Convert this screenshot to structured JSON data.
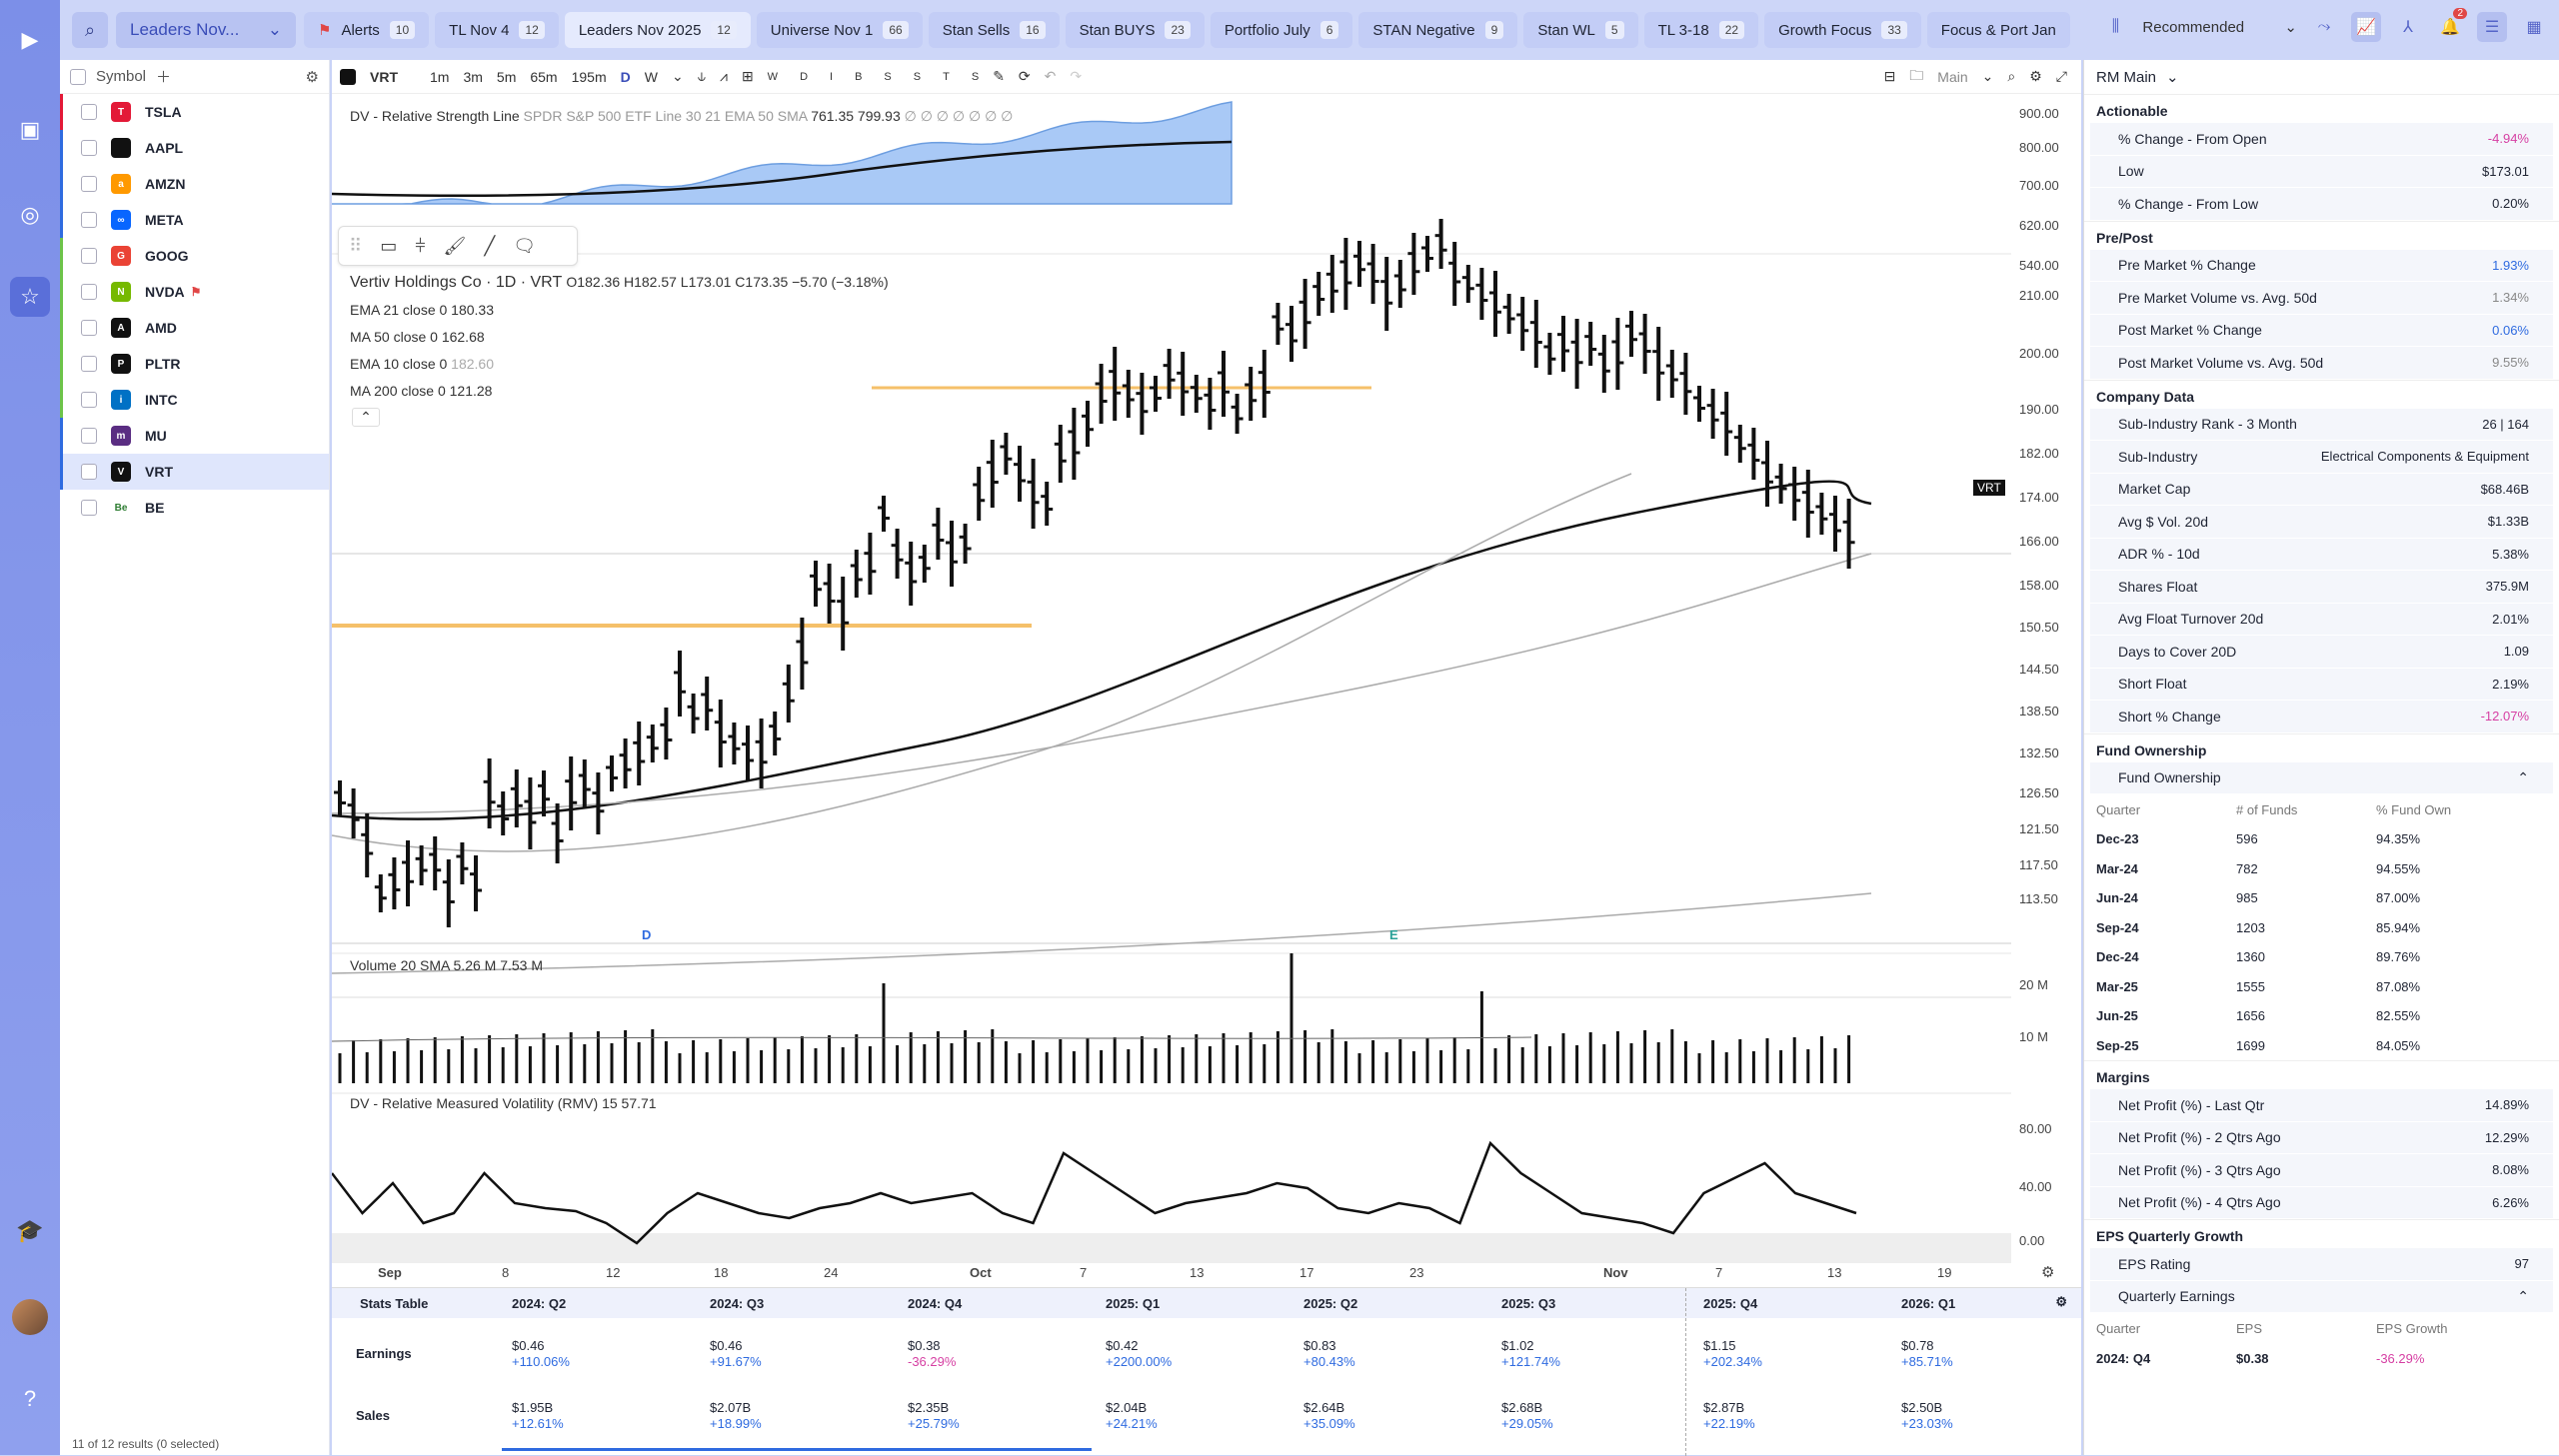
{
  "topbar": {
    "watchlist": "Leaders Nov...",
    "tabs": [
      {
        "label": "Alerts",
        "count": "10"
      },
      {
        "label": "TL Nov 4",
        "count": "12"
      },
      {
        "label": "Leaders Nov 2025",
        "count": "12",
        "active": true
      },
      {
        "label": "Universe Nov 1",
        "count": "66"
      },
      {
        "label": "Stan Sells",
        "count": "16"
      },
      {
        "label": "Stan BUYS",
        "count": "23"
      },
      {
        "label": "Portfolio July",
        "count": "6"
      },
      {
        "label": "STAN Negative",
        "count": "9"
      },
      {
        "label": "Stan WL",
        "count": "5"
      },
      {
        "label": "TL 3-18",
        "count": "22"
      },
      {
        "label": "Growth Focus",
        "count": "33"
      },
      {
        "label": "Focus & Port Jan",
        "count": ""
      }
    ],
    "sort": "Recommended",
    "notif_count": "2"
  },
  "symlist": {
    "header": "Symbol",
    "footer": "11 of 12 results (0 selected)",
    "rows": [
      {
        "sym": "TSLA",
        "color": "#e31937",
        "bar": "#e31937",
        "glyph": "T"
      },
      {
        "sym": "AAPL",
        "color": "#111",
        "bar": "#2f6be0",
        "glyph": ""
      },
      {
        "sym": "AMZN",
        "color": "#ff9900",
        "bar": "#2f6be0",
        "glyph": "a"
      },
      {
        "sym": "META",
        "color": "#0866ff",
        "bar": "#2f6be0",
        "glyph": "∞"
      },
      {
        "sym": "GOOG",
        "color": "#ea4335",
        "bar": "#6dc34a",
        "glyph": "G"
      },
      {
        "sym": "NVDA",
        "color": "#76b900",
        "bar": "#6dc34a",
        "glyph": "N",
        "flag": true
      },
      {
        "sym": "AMD",
        "color": "#111",
        "bar": "#6dc34a",
        "glyph": "A"
      },
      {
        "sym": "PLTR",
        "color": "#111",
        "bar": "#6dc34a",
        "glyph": "P"
      },
      {
        "sym": "INTC",
        "color": "#0071c5",
        "bar": "#6dc34a",
        "glyph": "i"
      },
      {
        "sym": "MU",
        "color": "#5a2d82",
        "bar": "#2f6be0",
        "glyph": "m"
      },
      {
        "sym": "VRT",
        "color": "#111",
        "bar": "#2f6be0",
        "glyph": "V",
        "sel": true
      },
      {
        "sym": "BE",
        "color": "#fff",
        "bar": "transparent",
        "glyph": "Be"
      }
    ]
  },
  "chart_toolbar": {
    "symbol": "VRT",
    "intervals": [
      "1m",
      "3m",
      "5m",
      "65m",
      "195m",
      "D",
      "W"
    ],
    "days": [
      "W",
      "D",
      "I",
      "B",
      "S",
      "S",
      "T",
      "S"
    ],
    "layout": "Main"
  },
  "rs_legend": {
    "name": "DV - Relative Strength Line",
    "args": "SPDR S&P 500 ETF Line 30 21 EMA 50 SMA",
    "v1": "761.35",
    "v2": "799.93",
    "tail": "∅ ∅ ∅ ∅ ∅ ∅ ∅"
  },
  "rs_axis": [
    "900.00",
    "800.00",
    "700.00",
    "620.00",
    "540.00"
  ],
  "price_legend": {
    "name": "Vertiv Holdings Co · 1D · VRT",
    "ohlc": "O182.36  H182.57  L173.01  C173.35  −5.70 (−3.18%)",
    "mas": [
      {
        "label": "EMA 21 close 0",
        "val": "180.33"
      },
      {
        "label": "MA 50 close 0",
        "val": "162.68"
      },
      {
        "label": "EMA 10 close 0",
        "val": "182.60"
      },
      {
        "label": "MA 200 close 0",
        "val": "121.28"
      }
    ]
  },
  "price_axis": [
    "210.00",
    "200.00",
    "190.00",
    "182.00",
    "174.00",
    "166.00",
    "158.00",
    "150.50",
    "144.50",
    "138.50",
    "132.50",
    "126.50",
    "121.50",
    "117.50",
    "113.50"
  ],
  "last_price_tag": "VRT",
  "markers": [
    "D",
    "E"
  ],
  "vol_legend": {
    "name": "Volume 20 SMA",
    "v1": "5.26 M",
    "v2": "7.53 M"
  },
  "vol_axis": [
    "20 M",
    "10 M"
  ],
  "rmv_legend": {
    "name": "DV - Relative Measured Volatility (RMV) 15",
    "val": "57.71"
  },
  "rmv_axis": [
    "80.00",
    "40.00",
    "0.00"
  ],
  "x_axis": [
    "Sep",
    "8",
    "12",
    "18",
    "24",
    "Oct",
    "7",
    "13",
    "17",
    "23",
    "Nov",
    "7",
    "13",
    "19"
  ],
  "stats": {
    "title": "Stats Table",
    "rows": [
      "Earnings",
      "Sales"
    ],
    "cols": [
      {
        "q": "2024: Q2",
        "e": "$0.46",
        "eg": "+110.06%",
        "s": "$1.95B",
        "sg": "+12.61%"
      },
      {
        "q": "2024: Q3",
        "e": "$0.46",
        "eg": "+91.67%",
        "s": "$2.07B",
        "sg": "+18.99%"
      },
      {
        "q": "2024: Q4",
        "e": "$0.38",
        "eg": "-36.29%",
        "s": "$2.35B",
        "sg": "+25.79%"
      },
      {
        "q": "2025: Q1",
        "e": "$0.42",
        "eg": "+2200.00%",
        "s": "$2.04B",
        "sg": "+24.21%"
      },
      {
        "q": "2025: Q2",
        "e": "$0.83",
        "eg": "+80.43%",
        "s": "$2.64B",
        "sg": "+35.09%"
      },
      {
        "q": "2025: Q3",
        "e": "$1.02",
        "eg": "+121.74%",
        "s": "$2.68B",
        "sg": "+29.05%"
      },
      {
        "q": "2025: Q4",
        "e": "$1.15",
        "eg": "+202.34%",
        "s": "$2.87B",
        "sg": "+22.19%"
      },
      {
        "q": "2026: Q1",
        "e": "$0.78",
        "eg": "+85.71%",
        "s": "$2.50B",
        "sg": "+23.03%"
      }
    ]
  },
  "rpanel": {
    "title": "RM Main",
    "actionable": {
      "title": "Actionable",
      "rows": [
        {
          "k": "% Change - From Open",
          "v": "-4.94%",
          "c": "neg"
        },
        {
          "k": "Low",
          "v": "$173.01",
          "c": ""
        },
        {
          "k": "% Change - From Low",
          "v": "0.20%",
          "c": ""
        }
      ]
    },
    "prepost": {
      "title": "Pre/Post",
      "rows": [
        {
          "k": "Pre Market % Change",
          "v": "1.93%",
          "c": "pos"
        },
        {
          "k": "Pre Market Volume vs. Avg. 50d",
          "v": "1.34%",
          "c": "g"
        },
        {
          "k": "Post Market % Change",
          "v": "0.06%",
          "c": "pos"
        },
        {
          "k": "Post Market Volume vs. Avg. 50d",
          "v": "9.55%",
          "c": "g"
        }
      ]
    },
    "company": {
      "title": "Company Data",
      "rows": [
        {
          "k": "Sub-Industry Rank - 3 Month",
          "v": "26 | 164",
          "c": ""
        },
        {
          "k": "Sub-Industry",
          "v": "Electrical Components & Equipment",
          "c": ""
        },
        {
          "k": "Market Cap",
          "v": "$68.46B",
          "c": ""
        },
        {
          "k": "Avg $ Vol. 20d",
          "v": "$1.33B",
          "c": ""
        },
        {
          "k": "ADR % - 10d",
          "v": "5.38%",
          "c": ""
        },
        {
          "k": "Shares Float",
          "v": "375.9M",
          "c": ""
        },
        {
          "k": "Avg Float Turnover 20d",
          "v": "2.01%",
          "c": ""
        },
        {
          "k": "Days to Cover 20D",
          "v": "1.09",
          "c": ""
        },
        {
          "k": "Short Float",
          "v": "2.19%",
          "c": ""
        },
        {
          "k": "Short % Change",
          "v": "-12.07%",
          "c": "neg"
        }
      ]
    },
    "fund": {
      "title": "Fund Ownership",
      "sub": "Fund Ownership",
      "cols": [
        "Quarter",
        "# of Funds",
        "% Fund Own"
      ],
      "rows": [
        [
          "Dec-23",
          "596",
          "94.35%"
        ],
        [
          "Mar-24",
          "782",
          "94.55%"
        ],
        [
          "Jun-24",
          "985",
          "87.00%"
        ],
        [
          "Sep-24",
          "1203",
          "85.94%"
        ],
        [
          "Dec-24",
          "1360",
          "89.76%"
        ],
        [
          "Mar-25",
          "1555",
          "87.08%"
        ],
        [
          "Jun-25",
          "1656",
          "82.55%"
        ],
        [
          "Sep-25",
          "1699",
          "84.05%"
        ]
      ]
    },
    "margins": {
      "title": "Margins",
      "rows": [
        {
          "k": "Net Profit (%) - Last Qtr",
          "v": "14.89%",
          "c": ""
        },
        {
          "k": "Net Profit (%) - 2 Qtrs Ago",
          "v": "12.29%",
          "c": ""
        },
        {
          "k": "Net Profit (%) - 3 Qtrs Ago",
          "v": "8.08%",
          "c": ""
        },
        {
          "k": "Net Profit (%) - 4 Qtrs Ago",
          "v": "6.26%",
          "c": ""
        }
      ]
    },
    "eps": {
      "title": "EPS Quarterly Growth",
      "rating_k": "EPS Rating",
      "rating_v": "97",
      "sub": "Quarterly Earnings",
      "cols": [
        "Quarter",
        "EPS",
        "EPS Growth"
      ],
      "row": [
        "2024: Q4",
        "$0.38",
        "-36.29%"
      ]
    }
  }
}
